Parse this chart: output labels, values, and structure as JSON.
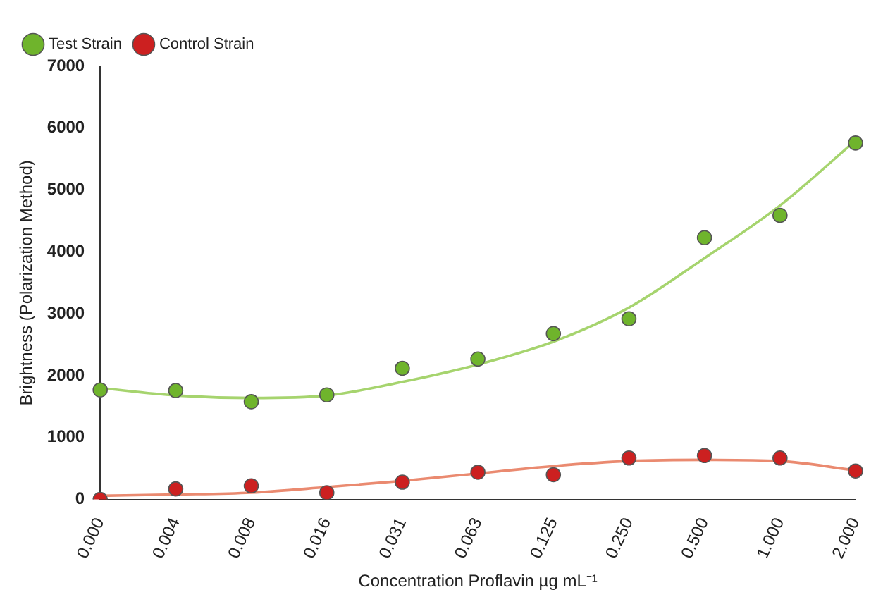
{
  "chart_data": {
    "type": "scatter",
    "xlabel": "Concentration Proflavin µg mL⁻¹",
    "ylabel": "Brightness (Polarization Method)",
    "categories": [
      "0.000",
      "0.004",
      "0.008",
      "0.016",
      "0.031",
      "0.063",
      "0.125",
      "0.250",
      "0.500",
      "1.000",
      "2.000"
    ],
    "series": [
      {
        "name": "Test Strain",
        "color": "#6fb42c",
        "values": [
          1770,
          1760,
          1580,
          1690,
          2120,
          2270,
          2680,
          2920,
          4230,
          4590,
          5760
        ]
      },
      {
        "name": "Control Strain",
        "color": "#cc2020",
        "values": [
          0,
          170,
          220,
          110,
          280,
          440,
          400,
          670,
          710,
          670,
          460
        ]
      },
      {
        "type": "line",
        "marker": "none",
        "color": "#a6d46e",
        "values": [
          1800,
          1680,
          1640,
          1680,
          1900,
          2180,
          2550,
          3100,
          3900,
          4750,
          5800
        ]
      },
      {
        "type": "line",
        "marker": "none",
        "color": "#ea8a70",
        "values": [
          60,
          80,
          110,
          200,
          300,
          420,
          540,
          620,
          640,
          620,
          470
        ]
      }
    ],
    "ylim": [
      0,
      7000
    ],
    "yticks": [
      0,
      1000,
      2000,
      3000,
      4000,
      5000,
      6000,
      7000
    ],
    "grid": false,
    "legend": "top left",
    "marker": "circle"
  }
}
